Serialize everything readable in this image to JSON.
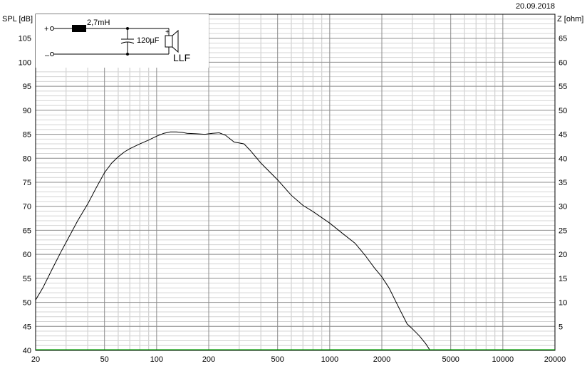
{
  "date": "20.09.2018",
  "chart_data": {
    "type": "line",
    "x_scale": "log",
    "xlim": [
      20,
      20000
    ],
    "ylim": [
      40,
      110
    ],
    "y2lim": [
      0,
      70
    ],
    "ylabel": "SPL [dB]",
    "y2label": "Z [ohm]",
    "grid": true,
    "x_ticks": [
      20,
      50,
      100,
      200,
      500,
      1000,
      2000,
      5000,
      10000,
      20000
    ],
    "x_tick_labels": [
      "20",
      "50",
      "100",
      "200",
      "500",
      "1000",
      "2000",
      "5000",
      "10000",
      "20000"
    ],
    "y_ticks": [
      45,
      50,
      55,
      60,
      65,
      70,
      75,
      80,
      85,
      90,
      95,
      100,
      105
    ],
    "y_tick_labels": [
      "45",
      "50",
      "55",
      "60",
      "65",
      "70",
      "75",
      "80",
      "85",
      "90",
      "95",
      "100",
      "105"
    ],
    "y_bottom_label": "40",
    "y2_ticks": [
      5,
      10,
      15,
      20,
      25,
      30,
      35,
      40,
      45,
      50,
      55,
      60,
      65
    ],
    "y2_tick_labels": [
      "5",
      "10",
      "15",
      "20",
      "25",
      "30",
      "35",
      "40",
      "45",
      "50",
      "55",
      "60",
      "65"
    ],
    "series": [
      {
        "color": "#000000",
        "x": [
          20,
          22,
          25,
          28,
          30,
          35,
          40,
          45,
          50,
          55,
          60,
          65,
          70,
          80,
          90,
          100,
          110,
          120,
          130,
          140,
          150,
          170,
          190,
          210,
          230,
          250,
          280,
          320,
          350,
          400,
          500,
          600,
          700,
          800,
          1000,
          1200,
          1400,
          1600,
          1800,
          2000,
          2200,
          2500,
          2800,
          3000,
          3300,
          3600,
          3800
        ],
        "y": [
          50.5,
          53,
          57,
          60.5,
          62.5,
          67,
          70.5,
          74,
          77,
          79,
          80.3,
          81.3,
          82,
          83,
          83.8,
          84.6,
          85.2,
          85.5,
          85.5,
          85.4,
          85.2,
          85.1,
          85.0,
          85.2,
          85.3,
          84.8,
          83.4,
          83.0,
          81.5,
          79.0,
          75.5,
          72.3,
          70.2,
          68.9,
          66.5,
          64.2,
          62.3,
          59.8,
          57.3,
          55.3,
          53.0,
          49.0,
          45.5,
          44.5,
          43.0,
          41.3,
          40.0
        ]
      },
      {
        "color": "#00c000",
        "x": [
          20,
          20000
        ],
        "y": [
          40.15,
          40.15
        ]
      }
    ]
  },
  "circuit": {
    "plus": "+",
    "minus": "–",
    "inductor": "2,7mH",
    "capacitor": "120µF",
    "speaker_plus": "+",
    "name": "LLF"
  }
}
